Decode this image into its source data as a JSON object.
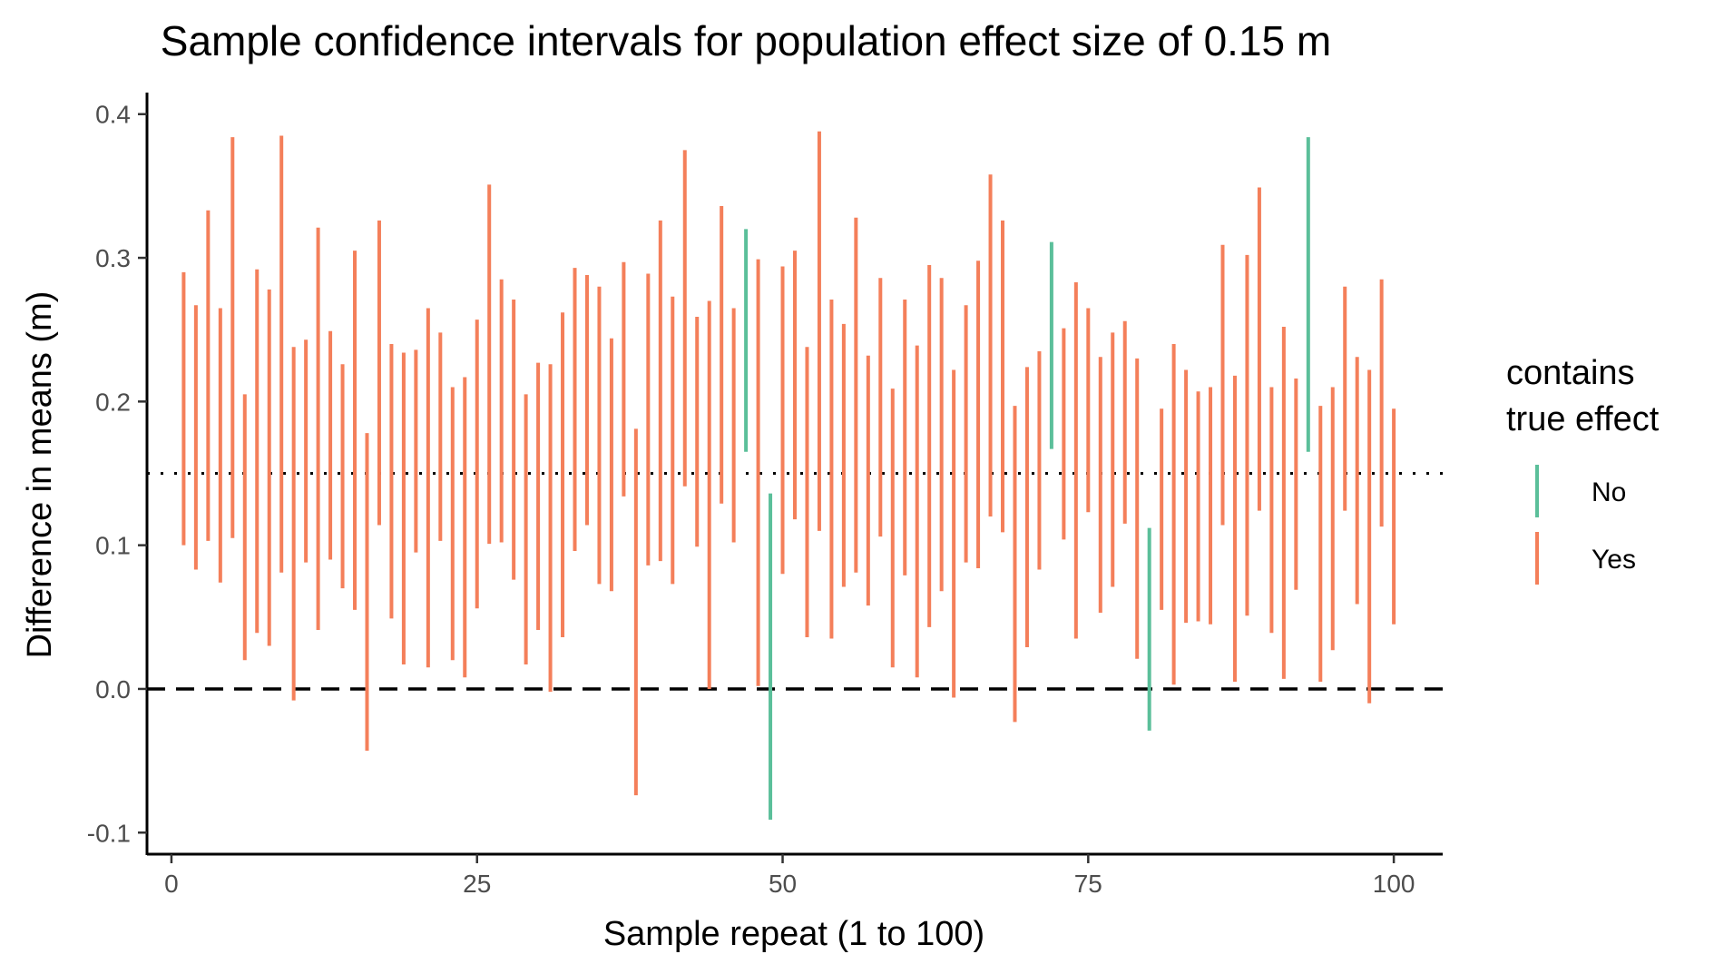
{
  "chart_data": {
    "type": "errorbar",
    "title": "Sample confidence intervals for population effect size of 0.15 m",
    "xlabel": "Sample repeat (1 to 100)",
    "ylabel": "Difference in means (m)",
    "xlim": [
      -2,
      104
    ],
    "ylim": [
      -0.115,
      0.415
    ],
    "x_ticks": [
      0,
      25,
      50,
      75,
      100
    ],
    "x_tick_labels": [
      "0",
      "25",
      "50",
      "75",
      "100"
    ],
    "y_ticks": [
      -0.1,
      0.0,
      0.1,
      0.2,
      0.3,
      0.4
    ],
    "y_tick_labels": [
      "-0.1",
      "0.0",
      "0.1",
      "0.2",
      "0.3",
      "0.4"
    ],
    "reference_lines": [
      {
        "y": 0.15,
        "style": "dotted"
      },
      {
        "y": 0.0,
        "style": "dashed"
      }
    ],
    "grid": false,
    "legend": {
      "title_lines": [
        "contains",
        "true effect"
      ],
      "placement": "right",
      "entries": [
        {
          "label": "No",
          "color": "#5bbf9a"
        },
        {
          "label": "Yes",
          "color": "#f47f5a"
        }
      ]
    },
    "colors": {
      "No": "#5bbf9a",
      "Yes": "#f47f5a"
    },
    "intervals": [
      {
        "x": 1,
        "lower": 0.1,
        "upper": 0.29,
        "contains": "Yes"
      },
      {
        "x": 2,
        "lower": 0.083,
        "upper": 0.267,
        "contains": "Yes"
      },
      {
        "x": 3,
        "lower": 0.103,
        "upper": 0.333,
        "contains": "Yes"
      },
      {
        "x": 4,
        "lower": 0.074,
        "upper": 0.265,
        "contains": "Yes"
      },
      {
        "x": 5,
        "lower": 0.105,
        "upper": 0.384,
        "contains": "Yes"
      },
      {
        "x": 6,
        "lower": 0.02,
        "upper": 0.205,
        "contains": "Yes"
      },
      {
        "x": 7,
        "lower": 0.039,
        "upper": 0.292,
        "contains": "Yes"
      },
      {
        "x": 8,
        "lower": 0.03,
        "upper": 0.278,
        "contains": "Yes"
      },
      {
        "x": 9,
        "lower": 0.081,
        "upper": 0.385,
        "contains": "Yes"
      },
      {
        "x": 10,
        "lower": -0.008,
        "upper": 0.238,
        "contains": "Yes"
      },
      {
        "x": 11,
        "lower": 0.088,
        "upper": 0.243,
        "contains": "Yes"
      },
      {
        "x": 12,
        "lower": 0.041,
        "upper": 0.321,
        "contains": "Yes"
      },
      {
        "x": 13,
        "lower": 0.09,
        "upper": 0.249,
        "contains": "Yes"
      },
      {
        "x": 14,
        "lower": 0.07,
        "upper": 0.226,
        "contains": "Yes"
      },
      {
        "x": 15,
        "lower": 0.055,
        "upper": 0.305,
        "contains": "Yes"
      },
      {
        "x": 16,
        "lower": -0.043,
        "upper": 0.178,
        "contains": "Yes"
      },
      {
        "x": 17,
        "lower": 0.114,
        "upper": 0.326,
        "contains": "Yes"
      },
      {
        "x": 18,
        "lower": 0.049,
        "upper": 0.24,
        "contains": "Yes"
      },
      {
        "x": 19,
        "lower": 0.017,
        "upper": 0.234,
        "contains": "Yes"
      },
      {
        "x": 20,
        "lower": 0.095,
        "upper": 0.236,
        "contains": "Yes"
      },
      {
        "x": 21,
        "lower": 0.015,
        "upper": 0.265,
        "contains": "Yes"
      },
      {
        "x": 22,
        "lower": 0.103,
        "upper": 0.248,
        "contains": "Yes"
      },
      {
        "x": 23,
        "lower": 0.02,
        "upper": 0.21,
        "contains": "Yes"
      },
      {
        "x": 24,
        "lower": 0.008,
        "upper": 0.217,
        "contains": "Yes"
      },
      {
        "x": 25,
        "lower": 0.056,
        "upper": 0.257,
        "contains": "Yes"
      },
      {
        "x": 26,
        "lower": 0.101,
        "upper": 0.351,
        "contains": "Yes"
      },
      {
        "x": 27,
        "lower": 0.102,
        "upper": 0.285,
        "contains": "Yes"
      },
      {
        "x": 28,
        "lower": 0.076,
        "upper": 0.271,
        "contains": "Yes"
      },
      {
        "x": 29,
        "lower": 0.017,
        "upper": 0.205,
        "contains": "Yes"
      },
      {
        "x": 30,
        "lower": 0.041,
        "upper": 0.227,
        "contains": "Yes"
      },
      {
        "x": 31,
        "lower": -0.002,
        "upper": 0.226,
        "contains": "Yes"
      },
      {
        "x": 32,
        "lower": 0.036,
        "upper": 0.262,
        "contains": "Yes"
      },
      {
        "x": 33,
        "lower": 0.096,
        "upper": 0.293,
        "contains": "Yes"
      },
      {
        "x": 34,
        "lower": 0.114,
        "upper": 0.288,
        "contains": "Yes"
      },
      {
        "x": 35,
        "lower": 0.073,
        "upper": 0.28,
        "contains": "Yes"
      },
      {
        "x": 36,
        "lower": 0.068,
        "upper": 0.244,
        "contains": "Yes"
      },
      {
        "x": 37,
        "lower": 0.134,
        "upper": 0.297,
        "contains": "Yes"
      },
      {
        "x": 38,
        "lower": -0.074,
        "upper": 0.181,
        "contains": "Yes"
      },
      {
        "x": 39,
        "lower": 0.086,
        "upper": 0.289,
        "contains": "Yes"
      },
      {
        "x": 40,
        "lower": 0.089,
        "upper": 0.326,
        "contains": "Yes"
      },
      {
        "x": 41,
        "lower": 0.073,
        "upper": 0.273,
        "contains": "Yes"
      },
      {
        "x": 42,
        "lower": 0.141,
        "upper": 0.375,
        "contains": "Yes"
      },
      {
        "x": 43,
        "lower": 0.099,
        "upper": 0.259,
        "contains": "Yes"
      },
      {
        "x": 44,
        "lower": 0.0,
        "upper": 0.27,
        "contains": "Yes"
      },
      {
        "x": 45,
        "lower": 0.129,
        "upper": 0.336,
        "contains": "Yes"
      },
      {
        "x": 46,
        "lower": 0.102,
        "upper": 0.265,
        "contains": "Yes"
      },
      {
        "x": 47,
        "lower": 0.165,
        "upper": 0.32,
        "contains": "No"
      },
      {
        "x": 48,
        "lower": 0.002,
        "upper": 0.299,
        "contains": "Yes"
      },
      {
        "x": 49,
        "lower": -0.091,
        "upper": 0.136,
        "contains": "No"
      },
      {
        "x": 50,
        "lower": 0.08,
        "upper": 0.294,
        "contains": "Yes"
      },
      {
        "x": 51,
        "lower": 0.118,
        "upper": 0.305,
        "contains": "Yes"
      },
      {
        "x": 52,
        "lower": 0.036,
        "upper": 0.238,
        "contains": "Yes"
      },
      {
        "x": 53,
        "lower": 0.11,
        "upper": 0.388,
        "contains": "Yes"
      },
      {
        "x": 54,
        "lower": 0.035,
        "upper": 0.271,
        "contains": "Yes"
      },
      {
        "x": 55,
        "lower": 0.071,
        "upper": 0.254,
        "contains": "Yes"
      },
      {
        "x": 56,
        "lower": 0.081,
        "upper": 0.328,
        "contains": "Yes"
      },
      {
        "x": 57,
        "lower": 0.058,
        "upper": 0.232,
        "contains": "Yes"
      },
      {
        "x": 58,
        "lower": 0.106,
        "upper": 0.286,
        "contains": "Yes"
      },
      {
        "x": 59,
        "lower": 0.015,
        "upper": 0.209,
        "contains": "Yes"
      },
      {
        "x": 60,
        "lower": 0.079,
        "upper": 0.271,
        "contains": "Yes"
      },
      {
        "x": 61,
        "lower": 0.008,
        "upper": 0.239,
        "contains": "Yes"
      },
      {
        "x": 62,
        "lower": 0.043,
        "upper": 0.295,
        "contains": "Yes"
      },
      {
        "x": 63,
        "lower": 0.068,
        "upper": 0.286,
        "contains": "Yes"
      },
      {
        "x": 64,
        "lower": -0.006,
        "upper": 0.222,
        "contains": "Yes"
      },
      {
        "x": 65,
        "lower": 0.088,
        "upper": 0.267,
        "contains": "Yes"
      },
      {
        "x": 66,
        "lower": 0.084,
        "upper": 0.298,
        "contains": "Yes"
      },
      {
        "x": 67,
        "lower": 0.12,
        "upper": 0.358,
        "contains": "Yes"
      },
      {
        "x": 68,
        "lower": 0.109,
        "upper": 0.326,
        "contains": "Yes"
      },
      {
        "x": 69,
        "lower": -0.023,
        "upper": 0.197,
        "contains": "Yes"
      },
      {
        "x": 70,
        "lower": 0.029,
        "upper": 0.224,
        "contains": "Yes"
      },
      {
        "x": 71,
        "lower": 0.083,
        "upper": 0.235,
        "contains": "Yes"
      },
      {
        "x": 72,
        "lower": 0.167,
        "upper": 0.311,
        "contains": "No"
      },
      {
        "x": 73,
        "lower": 0.104,
        "upper": 0.251,
        "contains": "Yes"
      },
      {
        "x": 74,
        "lower": 0.035,
        "upper": 0.283,
        "contains": "Yes"
      },
      {
        "x": 75,
        "lower": 0.123,
        "upper": 0.265,
        "contains": "Yes"
      },
      {
        "x": 76,
        "lower": 0.053,
        "upper": 0.231,
        "contains": "Yes"
      },
      {
        "x": 77,
        "lower": 0.071,
        "upper": 0.248,
        "contains": "Yes"
      },
      {
        "x": 78,
        "lower": 0.115,
        "upper": 0.256,
        "contains": "Yes"
      },
      {
        "x": 79,
        "lower": 0.021,
        "upper": 0.23,
        "contains": "Yes"
      },
      {
        "x": 80,
        "lower": -0.029,
        "upper": 0.112,
        "contains": "No"
      },
      {
        "x": 81,
        "lower": 0.055,
        "upper": 0.195,
        "contains": "Yes"
      },
      {
        "x": 82,
        "lower": 0.003,
        "upper": 0.24,
        "contains": "Yes"
      },
      {
        "x": 83,
        "lower": 0.046,
        "upper": 0.222,
        "contains": "Yes"
      },
      {
        "x": 84,
        "lower": 0.047,
        "upper": 0.207,
        "contains": "Yes"
      },
      {
        "x": 85,
        "lower": 0.045,
        "upper": 0.21,
        "contains": "Yes"
      },
      {
        "x": 86,
        "lower": 0.114,
        "upper": 0.309,
        "contains": "Yes"
      },
      {
        "x": 87,
        "lower": 0.005,
        "upper": 0.218,
        "contains": "Yes"
      },
      {
        "x": 88,
        "lower": 0.051,
        "upper": 0.302,
        "contains": "Yes"
      },
      {
        "x": 89,
        "lower": 0.124,
        "upper": 0.349,
        "contains": "Yes"
      },
      {
        "x": 90,
        "lower": 0.039,
        "upper": 0.21,
        "contains": "Yes"
      },
      {
        "x": 91,
        "lower": 0.007,
        "upper": 0.252,
        "contains": "Yes"
      },
      {
        "x": 92,
        "lower": 0.069,
        "upper": 0.216,
        "contains": "Yes"
      },
      {
        "x": 93,
        "lower": 0.165,
        "upper": 0.384,
        "contains": "No"
      },
      {
        "x": 94,
        "lower": 0.005,
        "upper": 0.197,
        "contains": "Yes"
      },
      {
        "x": 95,
        "lower": 0.027,
        "upper": 0.21,
        "contains": "Yes"
      },
      {
        "x": 96,
        "lower": 0.124,
        "upper": 0.28,
        "contains": "Yes"
      },
      {
        "x": 97,
        "lower": 0.059,
        "upper": 0.231,
        "contains": "Yes"
      },
      {
        "x": 98,
        "lower": -0.01,
        "upper": 0.222,
        "contains": "Yes"
      },
      {
        "x": 99,
        "lower": 0.113,
        "upper": 0.285,
        "contains": "Yes"
      },
      {
        "x": 100,
        "lower": 0.045,
        "upper": 0.195,
        "contains": "Yes"
      }
    ]
  }
}
